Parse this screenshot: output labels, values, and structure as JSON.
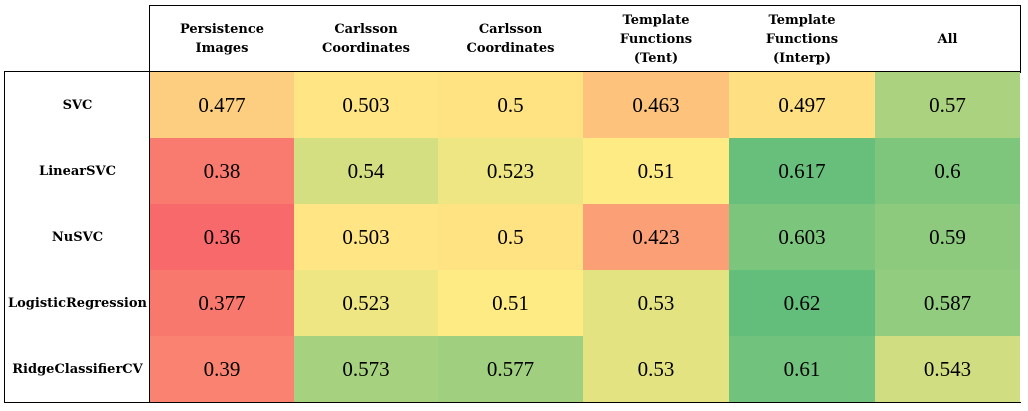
{
  "chart_data": {
    "type": "heatmap",
    "columns": [
      "Persistence Images",
      "Carlsson\nCoordinates",
      "Carlsson\nCoordinates",
      "Template Functions\n(Tent)",
      "Template Functions\n(Interp)",
      "All"
    ],
    "rows": [
      "SVC",
      "LinearSVC",
      "NuSVC",
      "LogisticRegression",
      "RidgeClassifierCV"
    ],
    "values": [
      [
        0.477,
        0.503,
        0.5,
        0.463,
        0.497,
        0.57
      ],
      [
        0.38,
        0.54,
        0.523,
        0.51,
        0.617,
        0.6
      ],
      [
        0.36,
        0.503,
        0.5,
        0.423,
        0.603,
        0.59
      ],
      [
        0.377,
        0.523,
        0.51,
        0.53,
        0.62,
        0.587
      ],
      [
        0.39,
        0.573,
        0.577,
        0.53,
        0.61,
        0.543
      ]
    ],
    "value_labels": [
      [
        "0.477",
        "0.503",
        "0.5",
        "0.463",
        "0.497",
        "0.57"
      ],
      [
        "0.38",
        "0.54",
        "0.523",
        "0.51",
        "0.617",
        "0.6"
      ],
      [
        "0.36",
        "0.503",
        "0.5",
        "0.423",
        "0.603",
        "0.59"
      ],
      [
        "0.377",
        "0.523",
        "0.51",
        "0.53",
        "0.62",
        "0.587"
      ],
      [
        "0.39",
        "0.573",
        "0.577",
        "0.53",
        "0.61",
        "0.543"
      ]
    ],
    "color_scale": {
      "min": 0.36,
      "mid": 0.51,
      "max": 0.62,
      "low": "#f8696b",
      "middle": "#ffeb84",
      "high": "#63be7b"
    }
  }
}
